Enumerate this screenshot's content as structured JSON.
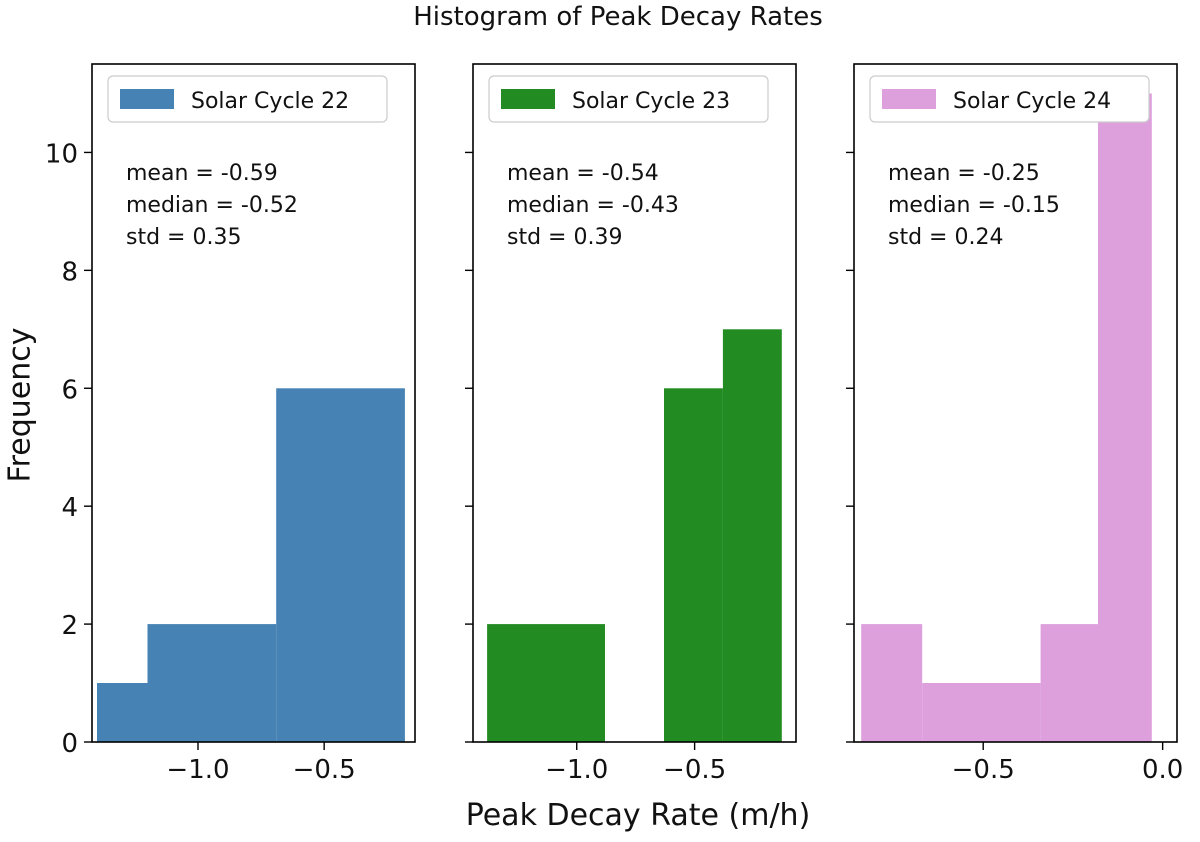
{
  "title": "Histogram of Peak Decay Rates",
  "ylabel": "Frequency",
  "xlabel": "Peak Decay Rate (m/h)",
  "chart_data": [
    {
      "type": "bar",
      "series_name": "Solar Cycle 22",
      "color": "#4682b4",
      "bins": [
        {
          "x0": -1.4,
          "x1": -1.2,
          "count": 1
        },
        {
          "x0": -1.2,
          "x1": -0.69,
          "count": 2
        },
        {
          "x0": -0.69,
          "x1": -0.18,
          "count": 6
        }
      ],
      "xlim": [
        -1.42,
        -0.14
      ],
      "xticks": [
        {
          "value": -1.0,
          "label": "−1.0"
        },
        {
          "value": -0.5,
          "label": "−0.5"
        }
      ],
      "ylim": [
        0,
        11.5
      ],
      "yticks": [
        {
          "value": 0,
          "label": "0"
        },
        {
          "value": 2,
          "label": "2"
        },
        {
          "value": 4,
          "label": "4"
        },
        {
          "value": 6,
          "label": "6"
        },
        {
          "value": 8,
          "label": "8"
        },
        {
          "value": 10,
          "label": "10"
        }
      ],
      "stats": [
        "mean = -0.59",
        "median = -0.52",
        "std = 0.35"
      ],
      "legend": "top-left",
      "grid": false
    },
    {
      "type": "bar",
      "series_name": "Solar Cycle 23",
      "color": "#228b22",
      "bins": [
        {
          "x0": -1.38,
          "x1": -0.88,
          "count": 2
        },
        {
          "x0": -0.88,
          "x1": -0.63,
          "count": 0
        },
        {
          "x0": -0.63,
          "x1": -0.38,
          "count": 6
        },
        {
          "x0": -0.38,
          "x1": -0.13,
          "count": 7
        }
      ],
      "xlim": [
        -1.44,
        -0.07
      ],
      "xticks": [
        {
          "value": -1.0,
          "label": "−1.0"
        },
        {
          "value": -0.5,
          "label": "−0.5"
        }
      ],
      "ylim": [
        0,
        11.5
      ],
      "stats": [
        "mean = -0.54",
        "median = -0.43",
        "std = 0.39"
      ],
      "legend": "top-left",
      "grid": false
    },
    {
      "type": "bar",
      "series_name": "Solar Cycle 24",
      "color": "#dda0dd",
      "bins": [
        {
          "x0": -0.84,
          "x1": -0.67,
          "count": 2
        },
        {
          "x0": -0.67,
          "x1": -0.34,
          "count": 1
        },
        {
          "x0": -0.34,
          "x1": -0.18,
          "count": 2
        },
        {
          "x0": -0.18,
          "x1": -0.03,
          "count": 11
        }
      ],
      "xlim": [
        -0.86,
        0.04
      ],
      "xticks": [
        {
          "value": -0.5,
          "label": "−0.5"
        },
        {
          "value": 0.0,
          "label": "0.0"
        }
      ],
      "ylim": [
        0,
        11.5
      ],
      "stats": [
        "mean = -0.25",
        "median = -0.15",
        "std = 0.24"
      ],
      "legend": "top-left",
      "grid": false
    }
  ]
}
